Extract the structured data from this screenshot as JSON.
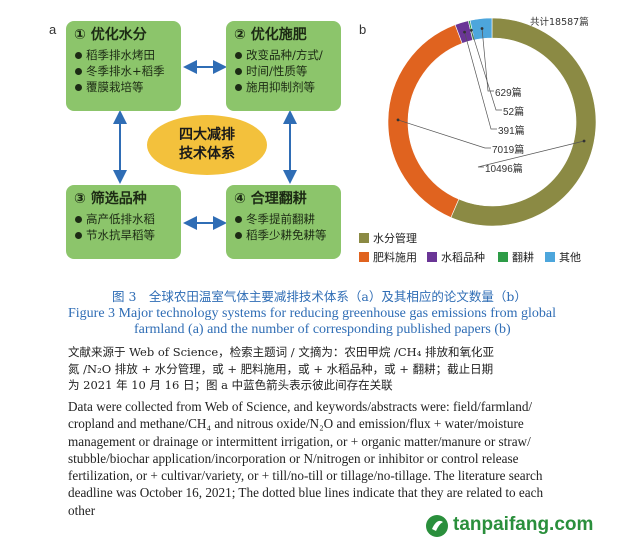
{
  "panel_a": {
    "letter": "a",
    "center": {
      "line1": "四大减排",
      "line2": "技术体系"
    },
    "boxes": [
      {
        "title": "① 优化水分",
        "items": [
          "稻季排水烤田",
          "冬季排水+稻季",
          "覆膜栽培等"
        ]
      },
      {
        "title": "② 优化施肥",
        "items": [
          "改变品种/方式/",
          "时间/性质等",
          "施用抑制剂等"
        ]
      },
      {
        "title": "③ 筛选品种",
        "items": [
          "高产低排水稻",
          "节水抗旱稻等"
        ]
      },
      {
        "title": "④ 合理翻耕",
        "items": [
          "冬季提前翻耕",
          "稻季少耕免耕等"
        ]
      }
    ]
  },
  "panel_b": {
    "letter": "b",
    "total": "共计18587篇",
    "labels": [
      "629篇",
      "52篇",
      "391篇",
      "7019篇",
      "10496篇"
    ],
    "legend": [
      {
        "label": "水分管理",
        "color": "#8b8a44"
      },
      {
        "label": "肥料施用",
        "color": "#e0631f"
      },
      {
        "label": "水稻品种",
        "color": "#6a3596"
      },
      {
        "label": "翻耕",
        "color": "#2e9c47"
      },
      {
        "label": "其他",
        "color": "#4da6dc"
      }
    ],
    "chart_data": {
      "type": "pie",
      "total": 18587,
      "slices": [
        {
          "name": "水分管理",
          "value": 10496,
          "color": "#8b8a44"
        },
        {
          "name": "肥料施用",
          "value": 7019,
          "color": "#e0631f"
        },
        {
          "name": "水稻品种",
          "value": 391,
          "color": "#6a3596"
        },
        {
          "name": "翻耕",
          "value": 52,
          "color": "#2e9c47"
        },
        {
          "name": "其他",
          "value": 629,
          "color": "#4da6dc"
        }
      ]
    }
  },
  "caption": {
    "cn": "图 3　全球农田温室气体主要减排技术体系（a）及其相应的论文数量（b）",
    "en_line1": "Figure 3    Major technology systems for reducing greenhouse gas emissions from global",
    "en_line2": "farmland (a) and the number of corresponding published papers (b)"
  },
  "note_cn": [
    "文献来源于 Web of Science，检索主题词 / 文摘为：农田甲烷 /CH₄ 排放和氧化亚",
    "氮 /N₂O 排放 + 水分管理，或 + 肥料施用，或 + 水稻品种，或 + 翻耕；截止日期",
    "为 2021 年 10 月 16 日；图 a 中蓝色箭头表示彼此间存在关联"
  ],
  "note_en": [
    "Data were collected from Web of Science, and keywords/abstracts were: field/farmland/",
    "cropland and methane/CH₄ and nitrous oxide/N₂O and emission/flux + water/moisture",
    "management or drainage or intermittent irrigation, or + organic matter/manure or straw/",
    "stubble/biochar application/incorporation or N/nitrogen or inhibitor or control release",
    "fertilization, or + cultivar/variety, or + till/no-till or tillage/no-tillage. The literature search",
    "deadline was October 16, 2021; The dotted blue lines indicate that they are related to each",
    "other"
  ],
  "watermark": "tanpaifang.com"
}
